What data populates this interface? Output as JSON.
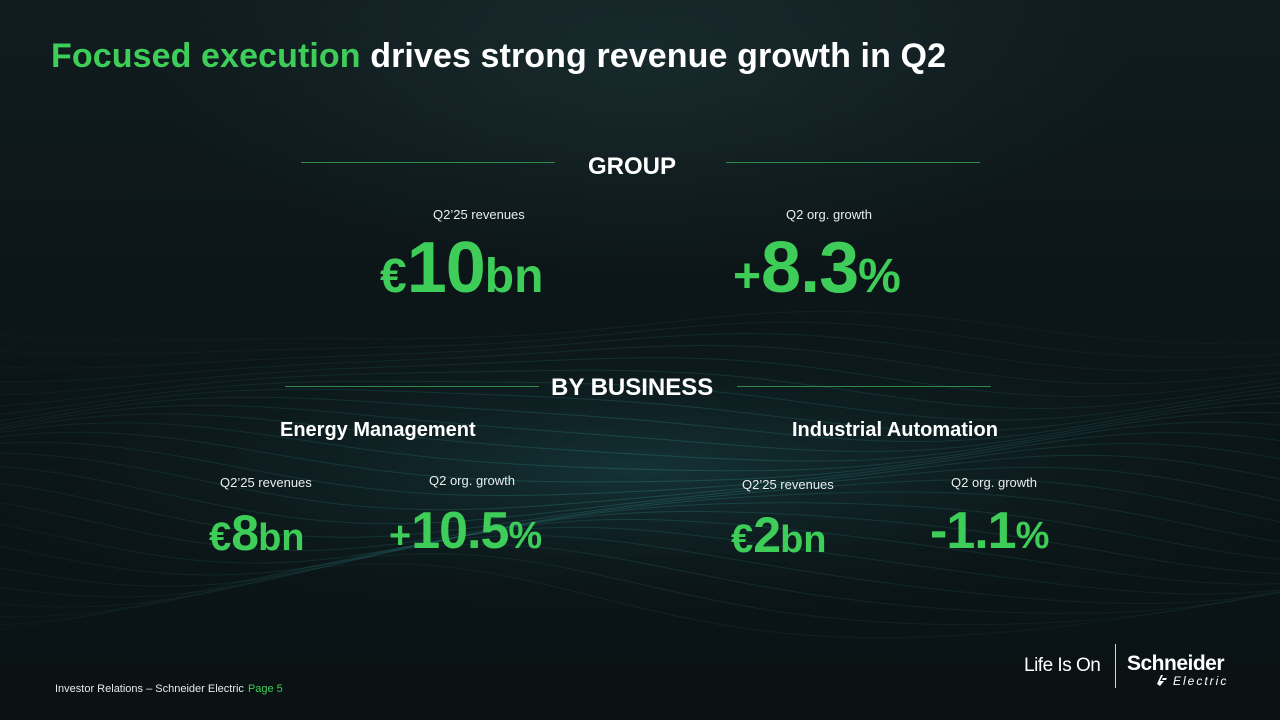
{
  "title": {
    "accent": "Focused execution",
    "rest": " drives strong revenue growth in Q2"
  },
  "group": {
    "label": "GROUP",
    "revenue_label": "Q2’25 revenues",
    "revenue_prefix": "€",
    "revenue_value": "10",
    "revenue_suffix": "bn",
    "growth_label": "Q2 org. growth",
    "growth_prefix": "+",
    "growth_value": "8.3",
    "growth_suffix": "%"
  },
  "by_business": {
    "label": "BY BUSINESS",
    "energy_management": {
      "title": "Energy Management",
      "revenue_label": "Q2’25 revenues",
      "revenue_prefix": "€",
      "revenue_value": "8",
      "revenue_suffix": "bn",
      "growth_label": "Q2 org. growth",
      "growth_prefix": "+",
      "growth_value": "10.5",
      "growth_suffix": "%"
    },
    "industrial_automation": {
      "title": "Industrial Automation",
      "revenue_label": "Q2’25 revenues",
      "revenue_prefix": "€",
      "revenue_value": "2",
      "revenue_suffix": "bn",
      "growth_label": "Q2 org. growth",
      "growth_prefix": "",
      "growth_value": "-1.1",
      "growth_suffix": "%"
    }
  },
  "footer": {
    "source": "Investor Relations – Schneider Electric",
    "page": "Page 5"
  },
  "branding": {
    "tagline": "Life Is On",
    "logo_name": "Schneider",
    "logo_sub": "Electric",
    "logo_mark_icon": "schneider-se-mark-icon",
    "power_icon": "power-icon"
  },
  "colors": {
    "accent_green": "#3dcd58",
    "background": "#0b1416",
    "rule": "#2f8a4a"
  }
}
